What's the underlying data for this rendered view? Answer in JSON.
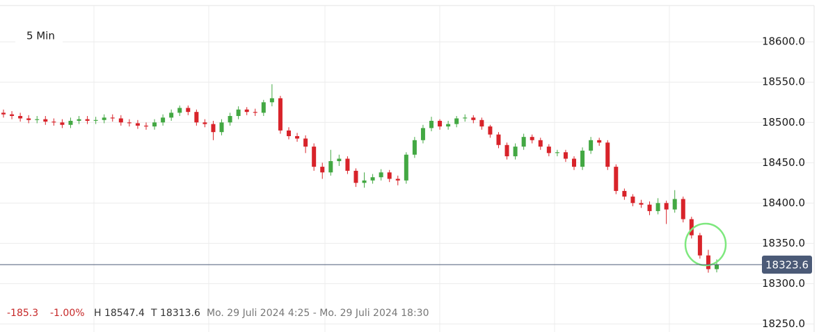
{
  "chart_data": {
    "type": "candlestick",
    "interval": "5 Min",
    "ylim": [
      18240,
      18645
    ],
    "yticks": [
      {
        "value": 18250,
        "label": "18250.0"
      },
      {
        "value": 18300,
        "label": "18300.0"
      },
      {
        "value": 18350,
        "label": "18350.0"
      },
      {
        "value": 18400,
        "label": "18400.0"
      },
      {
        "value": 18450,
        "label": "18450.0"
      },
      {
        "value": 18500,
        "label": "18500.0"
      },
      {
        "value": 18550,
        "label": "18550.0"
      },
      {
        "value": 18600,
        "label": "18600.0"
      }
    ],
    "grid": true,
    "up_color": "#43a843",
    "down_color": "#d8232a",
    "last_price": 18323.6,
    "last_price_color": "#4b5a77",
    "open": [
      18512,
      18510,
      18508,
      18505,
      18503,
      18504,
      18501,
      18500,
      18497,
      18502,
      18504,
      18502,
      18503,
      18506,
      18505,
      18500,
      18499,
      18496,
      18495,
      18500,
      18506,
      18512,
      18518,
      18513,
      18500,
      18498,
      18488,
      18500,
      18508,
      18516,
      18513,
      18512,
      18525,
      18530,
      18490,
      18483,
      18480,
      18470,
      18445,
      18438,
      18452,
      18455,
      18440,
      18425,
      18428,
      18432,
      18438,
      18430,
      18428,
      18460,
      18478,
      18493,
      18502,
      18495,
      18498,
      18505,
      18506,
      18503,
      18495,
      18485,
      18472,
      18458,
      18470,
      18482,
      18478,
      18470,
      18462,
      18463,
      18455,
      18445,
      18465,
      18478,
      18475,
      18445,
      18415,
      18408,
      18400,
      18398,
      18390,
      18400,
      18392,
      18405,
      18380,
      18360,
      18335,
      18318
    ],
    "high": [
      18516,
      18514,
      18512,
      18509,
      18508,
      18508,
      18505,
      18504,
      18506,
      18508,
      18508,
      18507,
      18510,
      18510,
      18509,
      18504,
      18503,
      18500,
      18504,
      18510,
      18516,
      18521,
      18521,
      18516,
      18504,
      18502,
      18504,
      18512,
      18520,
      18519,
      18517,
      18528,
      18547.4,
      18533,
      18494,
      18487,
      18484,
      18474,
      18450,
      18466,
      18460,
      18458,
      18443,
      18438,
      18436,
      18442,
      18441,
      18434,
      18463,
      18482,
      18497,
      18507,
      18504,
      18502,
      18508,
      18510,
      18509,
      18506,
      18497,
      18488,
      18475,
      18474,
      18486,
      18485,
      18481,
      18473,
      18466,
      18466,
      18458,
      18469,
      18482,
      18481,
      18478,
      18448,
      18418,
      18411,
      18404,
      18402,
      18406,
      18403,
      18416,
      18408,
      18383,
      18363,
      18342,
      18330
    ],
    "low": [
      18506,
      18504,
      18501,
      18499,
      18499,
      18497,
      18496,
      18493,
      18493,
      18498,
      18498,
      18498,
      18499,
      18501,
      18496,
      18495,
      18492,
      18491,
      18491,
      18496,
      18502,
      18508,
      18509,
      18496,
      18494,
      18478,
      18484,
      18496,
      18504,
      18509,
      18508,
      18508,
      18520,
      18486,
      18479,
      18476,
      18462,
      18440,
      18430,
      18434,
      18446,
      18436,
      18420,
      18419,
      18424,
      18428,
      18426,
      18422,
      18424,
      18456,
      18474,
      18489,
      18491,
      18491,
      18494,
      18501,
      18499,
      18491,
      18481,
      18468,
      18454,
      18454,
      18466,
      18474,
      18466,
      18458,
      18458,
      18451,
      18441,
      18441,
      18461,
      18471,
      18441,
      18411,
      18404,
      18396,
      18394,
      18385,
      18386,
      18374,
      18388,
      18376,
      18356,
      18331,
      18313.6,
      18314
    ],
    "close": [
      18510,
      18508,
      18505,
      18503,
      18504,
      18501,
      18500,
      18497,
      18502,
      18504,
      18502,
      18503,
      18506,
      18505,
      18500,
      18499,
      18496,
      18495,
      18500,
      18506,
      18512,
      18518,
      18513,
      18500,
      18498,
      18488,
      18500,
      18508,
      18516,
      18513,
      18512,
      18525,
      18530,
      18490,
      18483,
      18480,
      18470,
      18445,
      18438,
      18452,
      18455,
      18440,
      18425,
      18428,
      18432,
      18438,
      18430,
      18428,
      18460,
      18478,
      18493,
      18502,
      18495,
      18498,
      18505,
      18506,
      18503,
      18495,
      18485,
      18472,
      18458,
      18470,
      18482,
      18478,
      18470,
      18462,
      18463,
      18455,
      18445,
      18465,
      18478,
      18475,
      18445,
      18415,
      18408,
      18400,
      18398,
      18390,
      18400,
      18392,
      18405,
      18380,
      18360,
      18335,
      18318,
      18323.6
    ]
  },
  "info": {
    "change": "-185.3",
    "change_pct": "-1.00%",
    "high": "H 18547.4",
    "low": "T 18313.6",
    "range": "Mo. 29 Juli 2024 4:25 - Mo. 29 Juli 2024 18:30"
  }
}
